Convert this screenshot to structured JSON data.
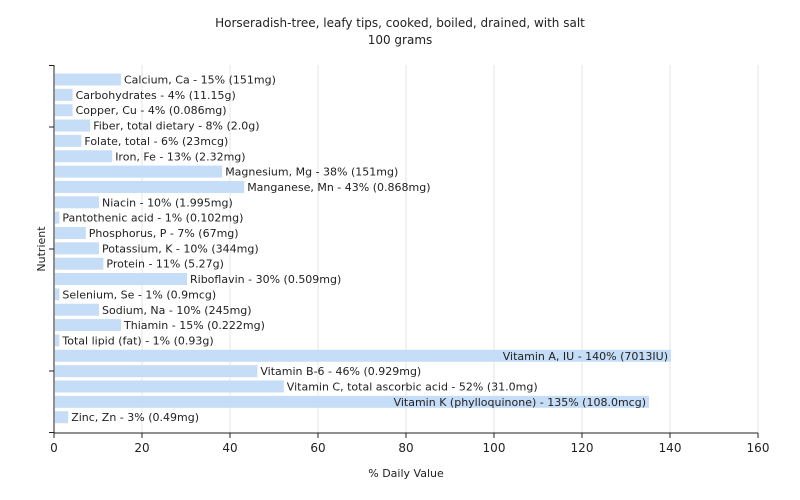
{
  "chart_data": {
    "type": "bar",
    "orientation": "horizontal",
    "title": "Horseradish-tree, leafy tips, cooked, boiled, drained, with salt",
    "subtitle": "100 grams",
    "xlabel": "% Daily Value",
    "ylabel": "Nutrient",
    "xlim": [
      0,
      160
    ],
    "xticks": [
      "0",
      "20",
      "40",
      "60",
      "80",
      "100",
      "120",
      "140",
      "160"
    ],
    "grid": true,
    "bar_color": "#c5ddf7",
    "bars": [
      {
        "name": "Calcium, Ca",
        "value": 15,
        "label": "Calcium, Ca - 15% (151mg)"
      },
      {
        "name": "Carbohydrates",
        "value": 4,
        "label": "Carbohydrates - 4% (11.15g)"
      },
      {
        "name": "Copper, Cu",
        "value": 4,
        "label": "Copper, Cu - 4% (0.086mg)"
      },
      {
        "name": "Fiber, total dietary",
        "value": 8,
        "label": "Fiber, total dietary - 8% (2.0g)"
      },
      {
        "name": "Folate, total",
        "value": 6,
        "label": "Folate, total - 6% (23mcg)"
      },
      {
        "name": "Iron, Fe",
        "value": 13,
        "label": "Iron, Fe - 13% (2.32mg)"
      },
      {
        "name": "Magnesium, Mg",
        "value": 38,
        "label": "Magnesium, Mg - 38% (151mg)"
      },
      {
        "name": "Manganese, Mn",
        "value": 43,
        "label": "Manganese, Mn - 43% (0.868mg)"
      },
      {
        "name": "Niacin",
        "value": 10,
        "label": "Niacin - 10% (1.995mg)"
      },
      {
        "name": "Pantothenic acid",
        "value": 1,
        "label": "Pantothenic acid - 1% (0.102mg)"
      },
      {
        "name": "Phosphorus, P",
        "value": 7,
        "label": "Phosphorus, P - 7% (67mg)"
      },
      {
        "name": "Potassium, K",
        "value": 10,
        "label": "Potassium, K - 10% (344mg)"
      },
      {
        "name": "Protein",
        "value": 11,
        "label": "Protein - 11% (5.27g)"
      },
      {
        "name": "Riboflavin",
        "value": 30,
        "label": "Riboflavin - 30% (0.509mg)"
      },
      {
        "name": "Selenium, Se",
        "value": 1,
        "label": "Selenium, Se - 1% (0.9mcg)"
      },
      {
        "name": "Sodium, Na",
        "value": 10,
        "label": "Sodium, Na - 10% (245mg)"
      },
      {
        "name": "Thiamin",
        "value": 15,
        "label": "Thiamin - 15% (0.222mg)"
      },
      {
        "name": "Total lipid (fat)",
        "value": 1,
        "label": "Total lipid (fat) - 1% (0.93g)"
      },
      {
        "name": "Vitamin A, IU",
        "value": 140,
        "label": "Vitamin A, IU - 140% (7013IU)"
      },
      {
        "name": "Vitamin B-6",
        "value": 46,
        "label": "Vitamin B-6 - 46% (0.929mg)"
      },
      {
        "name": "Vitamin C, total ascorbic acid",
        "value": 52,
        "label": "Vitamin C, total ascorbic acid - 52% (31.0mg)"
      },
      {
        "name": "Vitamin K (phylloquinone)",
        "value": 135,
        "label": "Vitamin K (phylloquinone) - 135% (108.0mcg)"
      },
      {
        "name": "Zinc, Zn",
        "value": 3,
        "label": "Zinc, Zn - 3% (0.49mg)"
      }
    ]
  }
}
